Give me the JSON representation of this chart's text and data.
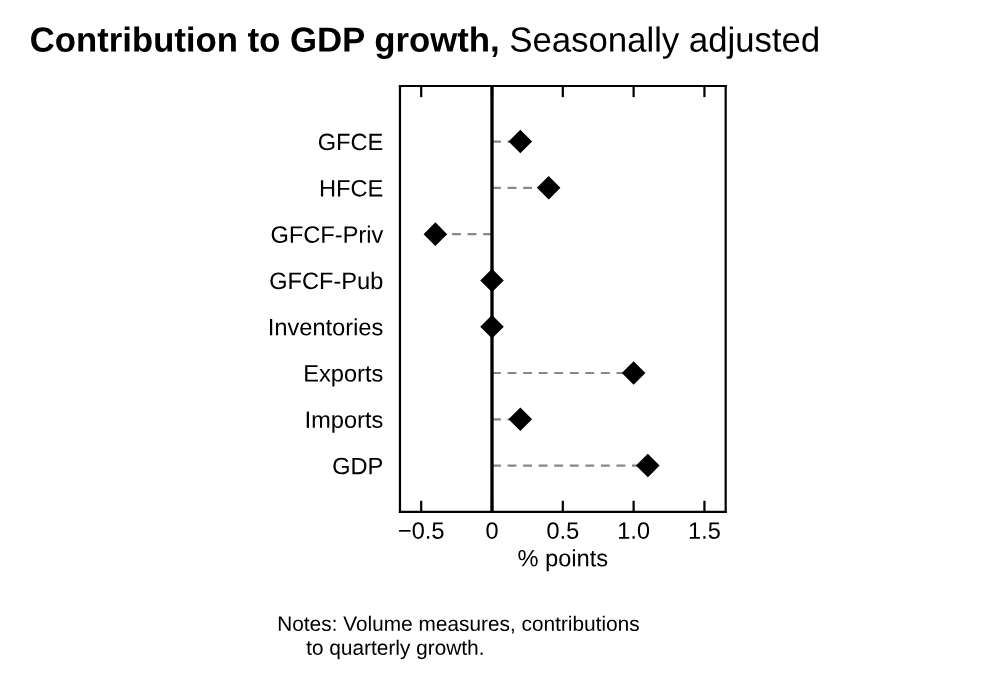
{
  "chart_data": {
    "type": "lollipop",
    "title": "Contribution to GDP growth,",
    "subtitle": "Seasonally adjusted",
    "xlabel": "% points",
    "orientation": "horizontal",
    "categories": [
      "GFCE",
      "HFCE",
      "GFCF-Priv",
      "GFCF-Pub",
      "Inventories",
      "Exports",
      "Imports",
      "GDP"
    ],
    "values": [
      0.2,
      0.4,
      -0.4,
      0,
      0,
      1.0,
      0.2,
      1.1
    ],
    "color": "#000000",
    "marker": "diamond",
    "line_style": "dashed",
    "xlim": [
      -0.65,
      1.65
    ],
    "xticks": [
      {
        "value": -0.5,
        "label": "−0.5"
      },
      0,
      0.5,
      {
        "value": 1.0,
        "label": "1.0"
      },
      1.5
    ],
    "ref_lines": [
      {
        "axis": "x",
        "value": 0,
        "color": "#000000"
      }
    ],
    "grid": false,
    "legend": false,
    "annotations": [
      "Notes: Volume measures, contributions\n     to quarterly growth."
    ]
  }
}
